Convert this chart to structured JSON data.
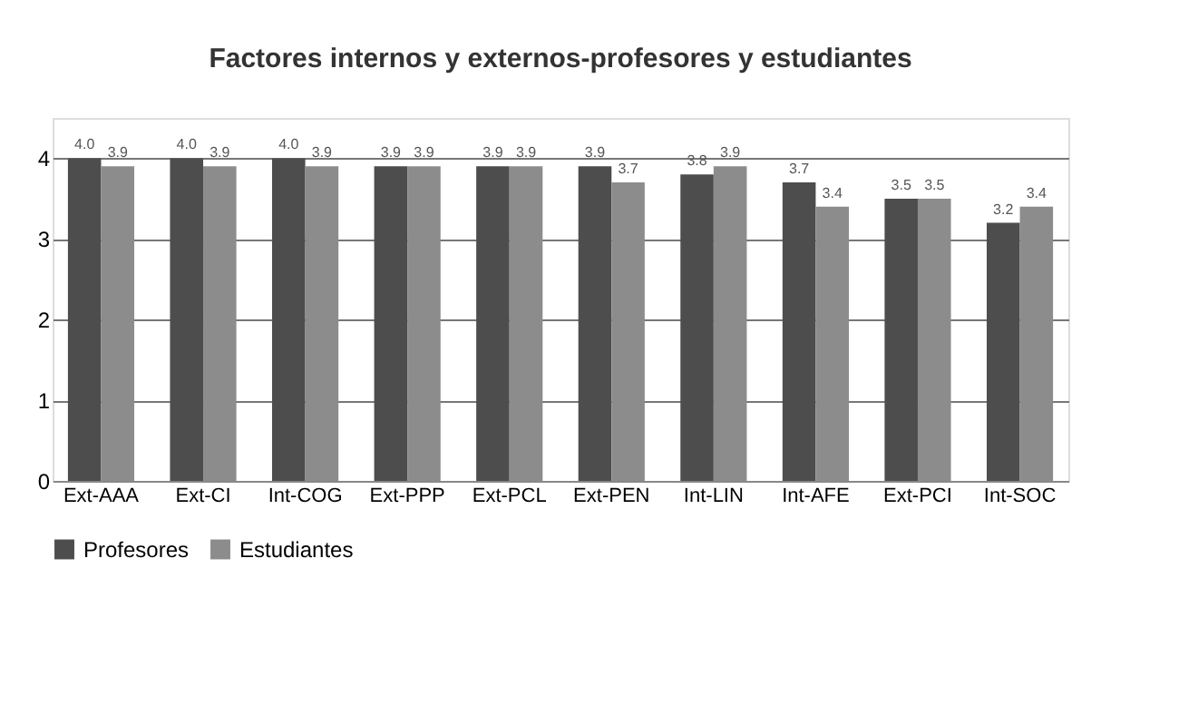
{
  "chart_data": {
    "type": "bar",
    "title": "Factores internos y externos-profesores y estudiantes",
    "categories": [
      "Ext-AAA",
      "Ext-CI",
      "Int-COG",
      "Ext-PPP",
      "Ext-PCL",
      "Ext-PEN",
      "Int-LIN",
      "Int-AFE",
      "Ext-PCI",
      "Int-SOC"
    ],
    "series": [
      {
        "name": "Profesores",
        "color": "#4d4d4d",
        "values": [
          4.0,
          4.0,
          4.0,
          3.9,
          3.9,
          3.9,
          3.8,
          3.7,
          3.5,
          3.2
        ],
        "value_labels": [
          "4.0",
          "4.0",
          "4.0",
          "3.9",
          "3.9",
          "3.9",
          "3.8",
          "3.7",
          "3.5",
          "3.2"
        ]
      },
      {
        "name": "Estudiantes",
        "color": "#8c8c8c",
        "values": [
          3.9,
          3.9,
          3.9,
          3.9,
          3.9,
          3.7,
          3.9,
          3.4,
          3.5,
          3.4
        ],
        "value_labels": [
          "3.9",
          "3.9",
          "3.9",
          "3.9",
          "3.9",
          "3.7",
          "3.9",
          "3.4",
          "3.5",
          "3.4"
        ]
      }
    ],
    "ylim": [
      0,
      4.5
    ],
    "yticks": [
      0,
      1,
      2,
      3,
      4
    ],
    "grid": "y",
    "legend": "bottom"
  }
}
